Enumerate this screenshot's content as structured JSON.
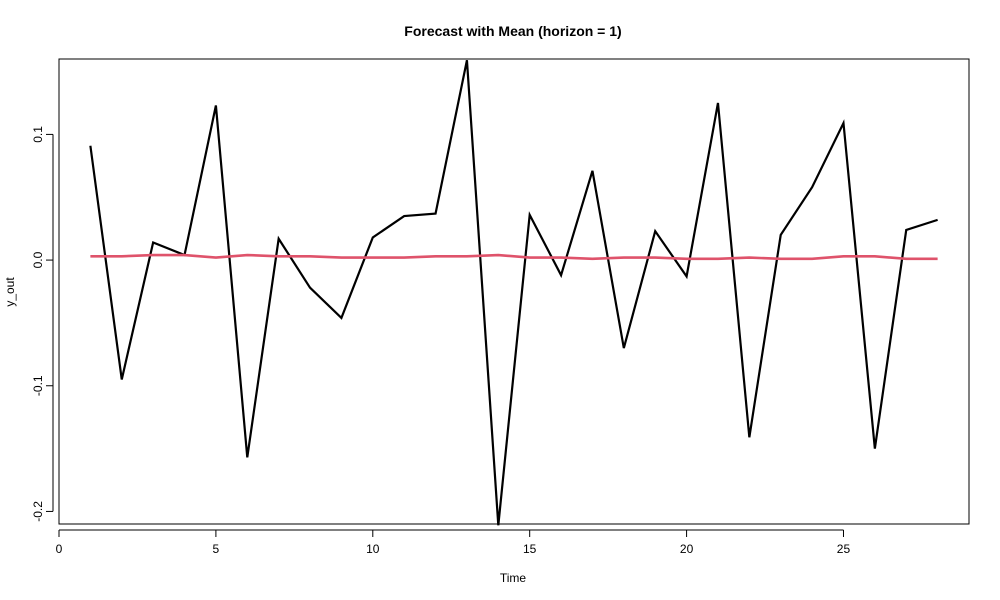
{
  "chart_data": {
    "type": "line",
    "title": "Forecast with Mean (horizon = 1)",
    "xlabel": "Time",
    "ylabel": "y_out",
    "xlim": [
      0,
      29
    ],
    "ylim": [
      -0.21,
      0.16
    ],
    "x_ticks": [
      0,
      5,
      10,
      15,
      20,
      25
    ],
    "y_ticks": [
      -0.2,
      -0.1,
      0.0,
      0.1
    ],
    "x_tick_labels": [
      "0",
      "5",
      "10",
      "15",
      "20",
      "25"
    ],
    "y_tick_labels": [
      "-0.2",
      "-0.1",
      "0.0",
      "0.1"
    ],
    "grid": false,
    "legend": "none",
    "x": [
      1,
      2,
      3,
      4,
      5,
      6,
      7,
      8,
      9,
      10,
      11,
      12,
      13,
      14,
      15,
      16,
      17,
      18,
      19,
      20,
      21,
      22,
      23,
      24,
      25,
      26,
      27,
      28
    ],
    "series": [
      {
        "color": "#000000",
        "values": [
          0.091,
          -0.095,
          0.014,
          0.004,
          0.123,
          -0.157,
          0.017,
          -0.022,
          -0.046,
          0.018,
          0.035,
          0.037,
          0.159,
          -0.211,
          0.036,
          -0.012,
          0.071,
          -0.07,
          0.023,
          -0.013,
          0.125,
          -0.141,
          0.02,
          0.058,
          0.109,
          -0.15,
          0.024,
          0.032
        ]
      },
      {
        "color": "#DF536B",
        "values": [
          0.003,
          0.003,
          0.004,
          0.004,
          0.002,
          0.004,
          0.003,
          0.003,
          0.002,
          0.002,
          0.002,
          0.003,
          0.003,
          0.004,
          0.002,
          0.002,
          0.001,
          0.002,
          0.002,
          0.001,
          0.001,
          0.002,
          0.001,
          0.001,
          0.003,
          0.003,
          0.001,
          0.001
        ]
      }
    ]
  }
}
